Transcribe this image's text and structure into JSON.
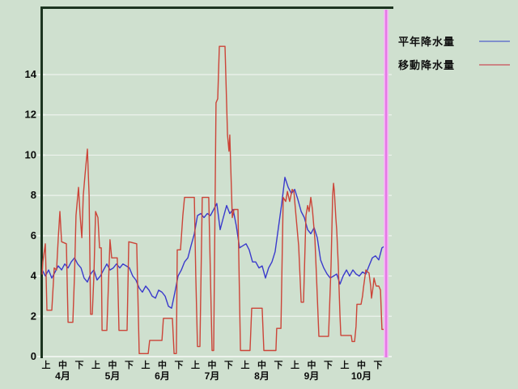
{
  "window": {
    "background_color": "#cfe0cf"
  },
  "legend": {
    "items": [
      {
        "label": "平年降水量",
        "swatch_color": "#8090cc"
      },
      {
        "label": "移動降水量",
        "swatch_color": "#cc8484"
      }
    ]
  },
  "chart_data": {
    "type": "line",
    "title": "",
    "xlabel": "",
    "ylabel": "",
    "x_axis": {
      "period_labels": [
        "上",
        "中",
        "下"
      ],
      "month_labels": [
        "4月",
        "5月",
        "6月",
        "7月",
        "8月",
        "9月",
        "10月"
      ],
      "x_unit_note": "x = 旬 index, 0 = 4月上旬 … 20 = 10月下旬",
      "tick_count": 21
    },
    "y_axis": {
      "tick_values": [
        0,
        2,
        4,
        6,
        8,
        10,
        12,
        14
      ],
      "ylim": [
        0,
        16
      ]
    },
    "grid": "horizontal white lines at every y tick",
    "legend_position": "top-right outside plot",
    "cursor_line": {
      "x": 20.49,
      "color": "#e678e6",
      "halo_color": "#f3bdf3"
    },
    "frame_color": "#1c3420",
    "gridline_color": "#edf3ed",
    "series": [
      {
        "name": "平年降水量",
        "color": "#3a3acc",
        "points": [
          [
            -0.24,
            4.3
          ],
          [
            -0.05,
            4.0
          ],
          [
            0.15,
            4.3
          ],
          [
            0.34,
            3.9
          ],
          [
            0.54,
            4.2
          ],
          [
            0.73,
            4.5
          ],
          [
            0.93,
            4.3
          ],
          [
            1.12,
            4.6
          ],
          [
            1.32,
            4.4
          ],
          [
            1.51,
            4.7
          ],
          [
            1.71,
            4.9
          ],
          [
            1.9,
            4.6
          ],
          [
            2.1,
            4.4
          ],
          [
            2.29,
            3.9
          ],
          [
            2.49,
            3.7
          ],
          [
            2.68,
            4.1
          ],
          [
            2.88,
            4.3
          ],
          [
            3.07,
            3.8
          ],
          [
            3.27,
            4.0
          ],
          [
            3.46,
            4.3
          ],
          [
            3.66,
            4.6
          ],
          [
            3.85,
            4.3
          ],
          [
            4.05,
            4.4
          ],
          [
            4.24,
            4.6
          ],
          [
            4.44,
            4.4
          ],
          [
            4.63,
            4.6
          ],
          [
            4.83,
            4.5
          ],
          [
            5.02,
            4.4
          ],
          [
            5.22,
            4.0
          ],
          [
            5.41,
            3.8
          ],
          [
            5.61,
            3.4
          ],
          [
            5.8,
            3.2
          ],
          [
            6.0,
            3.5
          ],
          [
            6.2,
            3.3
          ],
          [
            6.39,
            3.0
          ],
          [
            6.59,
            2.9
          ],
          [
            6.78,
            3.3
          ],
          [
            6.98,
            3.2
          ],
          [
            7.17,
            3.0
          ],
          [
            7.37,
            2.5
          ],
          [
            7.56,
            2.4
          ],
          [
            7.76,
            3.2
          ],
          [
            7.95,
            4.0
          ],
          [
            8.15,
            4.3
          ],
          [
            8.34,
            4.7
          ],
          [
            8.54,
            4.9
          ],
          [
            8.73,
            5.5
          ],
          [
            8.93,
            6.1
          ],
          [
            9.12,
            7.0
          ],
          [
            9.32,
            7.1
          ],
          [
            9.51,
            6.9
          ],
          [
            9.71,
            7.1
          ],
          [
            9.9,
            7.0
          ],
          [
            10.1,
            7.3
          ],
          [
            10.29,
            7.6
          ],
          [
            10.49,
            6.3
          ],
          [
            10.68,
            6.9
          ],
          [
            10.88,
            7.5
          ],
          [
            11.07,
            7.1
          ],
          [
            11.27,
            7.3
          ],
          [
            11.46,
            6.5
          ],
          [
            11.66,
            5.4
          ],
          [
            11.85,
            5.5
          ],
          [
            12.05,
            5.6
          ],
          [
            12.24,
            5.3
          ],
          [
            12.44,
            4.7
          ],
          [
            12.63,
            4.7
          ],
          [
            12.83,
            4.4
          ],
          [
            13.02,
            4.5
          ],
          [
            13.22,
            3.9
          ],
          [
            13.41,
            4.4
          ],
          [
            13.61,
            4.7
          ],
          [
            13.8,
            5.2
          ],
          [
            14.0,
            6.4
          ],
          [
            14.2,
            7.6
          ],
          [
            14.39,
            8.9
          ],
          [
            14.59,
            8.4
          ],
          [
            14.78,
            8.1
          ],
          [
            14.98,
            8.3
          ],
          [
            15.17,
            7.8
          ],
          [
            15.37,
            7.2
          ],
          [
            15.56,
            6.9
          ],
          [
            15.76,
            6.3
          ],
          [
            15.95,
            6.1
          ],
          [
            16.15,
            6.4
          ],
          [
            16.34,
            5.9
          ],
          [
            16.54,
            4.8
          ],
          [
            16.73,
            4.4
          ],
          [
            16.93,
            4.1
          ],
          [
            17.12,
            3.9
          ],
          [
            17.32,
            4.0
          ],
          [
            17.51,
            4.1
          ],
          [
            17.71,
            3.6
          ],
          [
            17.9,
            4.0
          ],
          [
            18.1,
            4.3
          ],
          [
            18.29,
            4.0
          ],
          [
            18.49,
            4.3
          ],
          [
            18.68,
            4.1
          ],
          [
            18.88,
            4.0
          ],
          [
            19.07,
            4.2
          ],
          [
            19.27,
            4.1
          ],
          [
            19.46,
            4.5
          ],
          [
            19.66,
            4.9
          ],
          [
            19.85,
            5.0
          ],
          [
            20.05,
            4.8
          ],
          [
            20.24,
            5.4
          ],
          [
            20.44,
            5.5
          ]
        ]
      },
      {
        "name": "移動降水量",
        "color": "#cc4438",
        "points": [
          [
            -0.24,
            4.1
          ],
          [
            -0.2,
            4.7
          ],
          [
            -0.05,
            5.6
          ],
          [
            0.05,
            2.3
          ],
          [
            0.34,
            2.3
          ],
          [
            0.49,
            4.4
          ],
          [
            0.63,
            4.3
          ],
          [
            0.73,
            5.9
          ],
          [
            0.83,
            7.2
          ],
          [
            0.93,
            5.7
          ],
          [
            1.22,
            5.6
          ],
          [
            1.32,
            1.7
          ],
          [
            1.61,
            1.7
          ],
          [
            1.71,
            4.1
          ],
          [
            1.8,
            7.0
          ],
          [
            1.95,
            8.4
          ],
          [
            2.05,
            7.0
          ],
          [
            2.15,
            5.9
          ],
          [
            2.24,
            8.0
          ],
          [
            2.34,
            9.0
          ],
          [
            2.49,
            10.3
          ],
          [
            2.59,
            8.0
          ],
          [
            2.68,
            2.1
          ],
          [
            2.78,
            2.1
          ],
          [
            2.88,
            4.0
          ],
          [
            2.98,
            7.2
          ],
          [
            3.12,
            6.9
          ],
          [
            3.22,
            5.4
          ],
          [
            3.32,
            5.4
          ],
          [
            3.37,
            1.3
          ],
          [
            3.66,
            1.3
          ],
          [
            3.85,
            5.8
          ],
          [
            3.95,
            4.9
          ],
          [
            4.29,
            4.9
          ],
          [
            4.39,
            1.3
          ],
          [
            4.88,
            1.3
          ],
          [
            4.98,
            5.7
          ],
          [
            5.46,
            5.6
          ],
          [
            5.61,
            0.15
          ],
          [
            6.15,
            0.15
          ],
          [
            6.24,
            0.8
          ],
          [
            6.98,
            0.8
          ],
          [
            7.07,
            1.9
          ],
          [
            7.61,
            1.9
          ],
          [
            7.71,
            0.15
          ],
          [
            7.85,
            0.15
          ],
          [
            7.9,
            5.3
          ],
          [
            8.1,
            5.3
          ],
          [
            8.24,
            7.0
          ],
          [
            8.34,
            7.9
          ],
          [
            8.93,
            7.9
          ],
          [
            9.02,
            4.0
          ],
          [
            9.12,
            0.5
          ],
          [
            9.27,
            0.5
          ],
          [
            9.41,
            7.9
          ],
          [
            9.8,
            7.9
          ],
          [
            9.9,
            4.0
          ],
          [
            10.0,
            0.3
          ],
          [
            10.1,
            0.3
          ],
          [
            10.24,
            12.6
          ],
          [
            10.34,
            12.8
          ],
          [
            10.44,
            15.4
          ],
          [
            10.78,
            15.4
          ],
          [
            10.93,
            11.0
          ],
          [
            11.02,
            10.2
          ],
          [
            11.07,
            11.0
          ],
          [
            11.22,
            6.9
          ],
          [
            11.32,
            7.3
          ],
          [
            11.56,
            7.3
          ],
          [
            11.71,
            0.3
          ],
          [
            12.29,
            0.3
          ],
          [
            12.39,
            2.4
          ],
          [
            13.02,
            2.4
          ],
          [
            13.12,
            0.3
          ],
          [
            13.85,
            0.3
          ],
          [
            13.9,
            1.4
          ],
          [
            14.15,
            1.4
          ],
          [
            14.29,
            7.9
          ],
          [
            14.44,
            7.7
          ],
          [
            14.54,
            8.2
          ],
          [
            14.68,
            7.7
          ],
          [
            14.83,
            8.3
          ],
          [
            14.93,
            8.2
          ],
          [
            15.07,
            6.9
          ],
          [
            15.22,
            5.5
          ],
          [
            15.37,
            2.7
          ],
          [
            15.51,
            2.7
          ],
          [
            15.66,
            7.0
          ],
          [
            15.76,
            7.5
          ],
          [
            15.85,
            7.2
          ],
          [
            15.95,
            7.9
          ],
          [
            16.05,
            7.3
          ],
          [
            16.2,
            5.8
          ],
          [
            16.29,
            4.1
          ],
          [
            16.44,
            1.0
          ],
          [
            17.02,
            1.0
          ],
          [
            17.17,
            4.5
          ],
          [
            17.27,
            8.0
          ],
          [
            17.32,
            8.6
          ],
          [
            17.37,
            8.2
          ],
          [
            17.46,
            6.9
          ],
          [
            17.51,
            6.3
          ],
          [
            17.61,
            4.5
          ],
          [
            17.66,
            3.3
          ],
          [
            17.71,
            2.0
          ],
          [
            17.76,
            1.05
          ],
          [
            18.39,
            1.05
          ],
          [
            18.44,
            0.75
          ],
          [
            18.59,
            0.75
          ],
          [
            18.68,
            1.5
          ],
          [
            18.73,
            2.6
          ],
          [
            18.98,
            2.6
          ],
          [
            19.07,
            3.0
          ],
          [
            19.12,
            3.4
          ],
          [
            19.22,
            4.0
          ],
          [
            19.27,
            4.3
          ],
          [
            19.37,
            4.2
          ],
          [
            19.46,
            4.15
          ],
          [
            19.56,
            3.5
          ],
          [
            19.61,
            2.9
          ],
          [
            19.71,
            3.5
          ],
          [
            19.76,
            3.9
          ],
          [
            19.85,
            3.6
          ],
          [
            19.9,
            3.5
          ],
          [
            20.05,
            3.5
          ],
          [
            20.1,
            3.4
          ],
          [
            20.15,
            3.3
          ],
          [
            20.2,
            2.2
          ],
          [
            20.24,
            1.35
          ],
          [
            20.39,
            1.35
          ],
          [
            20.44,
            2.1
          ]
        ]
      }
    ]
  }
}
